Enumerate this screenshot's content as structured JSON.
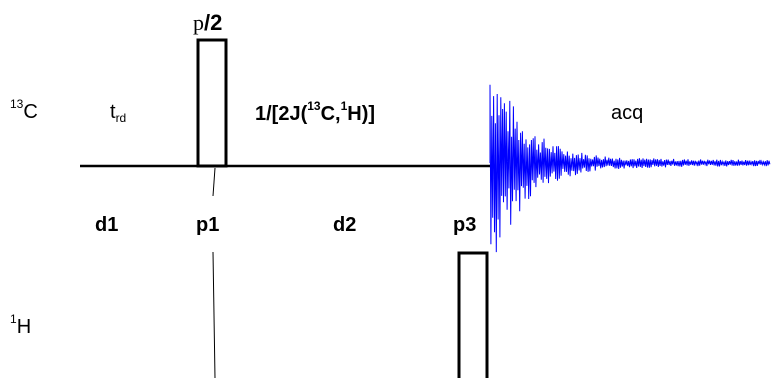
{
  "channels": {
    "carbon": {
      "label_sup": "13",
      "label_main": "C"
    },
    "proton": {
      "label_sup": "1",
      "label_main": "H"
    }
  },
  "pulse_top": {
    "greek": "p",
    "fraction": "/2"
  },
  "delay_trd": {
    "main": "t",
    "sub": "rd"
  },
  "coupling": {
    "prefix": "1/[2J(",
    "c_sup": "13",
    "c_main": "C,",
    "h_sup": "1",
    "h_main": "H)]"
  },
  "acq_label": "acq",
  "events": {
    "d1": "d1",
    "p1": "p1",
    "d2": "d2",
    "p3": "p3"
  },
  "colors": {
    "fid": "#0000ff",
    "line": "#000000"
  }
}
